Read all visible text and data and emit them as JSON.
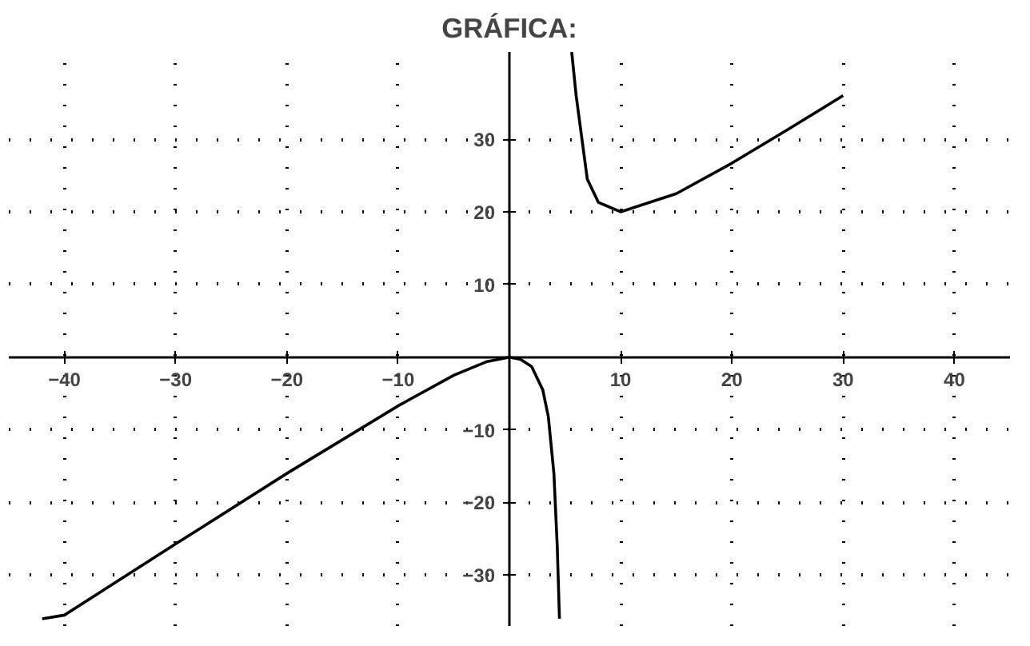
{
  "chart_data": {
    "type": "line",
    "title": "GRÁFICA:",
    "xlim": [
      -45,
      45
    ],
    "ylim": [
      -37,
      42
    ],
    "xticks": [
      -40,
      -30,
      -20,
      -10,
      10,
      20,
      30,
      40
    ],
    "yticks": [
      -30,
      -20,
      -10,
      10,
      20,
      30
    ],
    "grid": true,
    "marker": "none",
    "line_style": "solid",
    "series": [
      {
        "color": "#000000",
        "x": [
          -42,
          -40,
          -30,
          -20,
          -10,
          -5,
          -2,
          0,
          1,
          2,
          3,
          3.5,
          4,
          4.3,
          4.5
        ],
        "values": [
          -36,
          -35.5,
          -25.7,
          -16,
          -6.7,
          -2.5,
          -0.6,
          0,
          -0.3,
          -1.3,
          -4.5,
          -8.2,
          -16,
          -26,
          -36
        ]
      },
      {
        "color": "#000000",
        "x": [
          5.6,
          6,
          7,
          8,
          10,
          15,
          20,
          25,
          30
        ],
        "values": [
          42,
          36,
          24.5,
          21.3,
          20,
          22.5,
          26.7,
          31.3,
          36
        ]
      }
    ]
  }
}
